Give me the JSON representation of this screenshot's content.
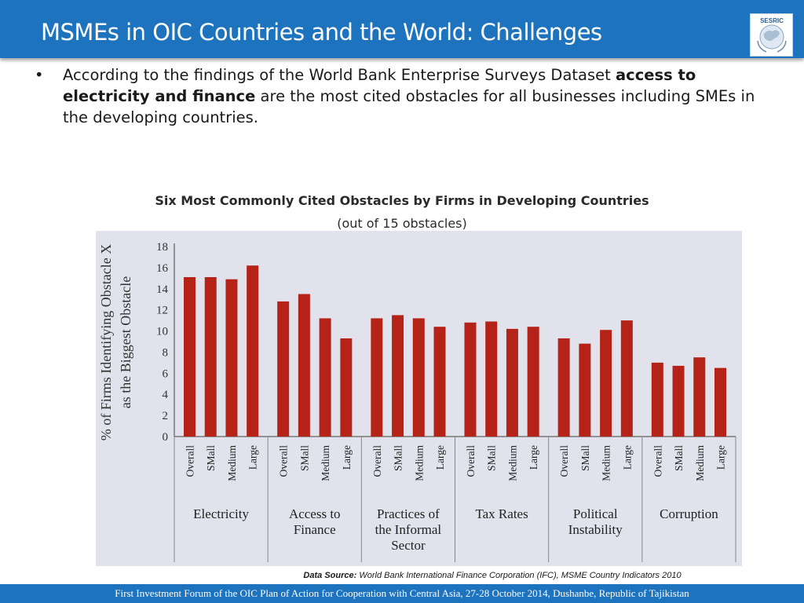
{
  "header": {
    "title": "MSMEs in OIC Countries and the World: Challenges",
    "logo_text": "SESRIC",
    "brand_color": "#1e73be"
  },
  "bullet": {
    "marker": "•",
    "text_before": "According to the findings of the World Bank Enterprise Surveys Dataset ",
    "text_bold": "access to electricity and finance",
    "text_after": " are the most cited obstacles for all businesses including SMEs in the developing countries."
  },
  "chart_title": "Six Most Commonly Cited Obstacles by Firms in Developing Countries",
  "chart_subtitle": "(out of 15 obstacles)",
  "chart_data": {
    "type": "bar",
    "ylabel_line1": "% of Firms Identifying Obstacle X",
    "ylabel_line2": "as the Biggest Obstacle",
    "ylim": [
      0,
      18
    ],
    "yticks": [
      "0",
      "2",
      "4",
      "6",
      "8",
      "10",
      "12",
      "14",
      "16",
      "18"
    ],
    "bar_color": "#b52318",
    "subcategories": [
      "Overall",
      "SMall",
      "Medium",
      "Large"
    ],
    "groups": [
      {
        "label_lines": [
          "Electricity"
        ],
        "values": [
          15.1,
          15.1,
          14.9,
          16.2
        ]
      },
      {
        "label_lines": [
          "Access to",
          "Finance"
        ],
        "values": [
          12.8,
          13.5,
          11.2,
          9.3
        ]
      },
      {
        "label_lines": [
          "Practices of",
          "the Informal",
          "Sector"
        ],
        "values": [
          11.2,
          11.5,
          11.2,
          10.4
        ]
      },
      {
        "label_lines": [
          "Tax Rates"
        ],
        "values": [
          10.8,
          10.9,
          10.2,
          10.4
        ]
      },
      {
        "label_lines": [
          "Political",
          "Instability"
        ],
        "values": [
          9.3,
          8.8,
          10.1,
          11.0
        ]
      },
      {
        "label_lines": [
          "Corruption"
        ],
        "values": [
          7.0,
          6.7,
          7.5,
          6.5
        ]
      }
    ]
  },
  "source": {
    "label": "Data Source:",
    "text": " World Bank International Finance Corporation (IFC), MSME Country Indicators 2010"
  },
  "footer": {
    "text": "First Investment Forum of the OIC Plan of Action for Cooperation with Central Asia, 27-28 October 2014, Dushanbe, Republic of Tajikistan"
  }
}
